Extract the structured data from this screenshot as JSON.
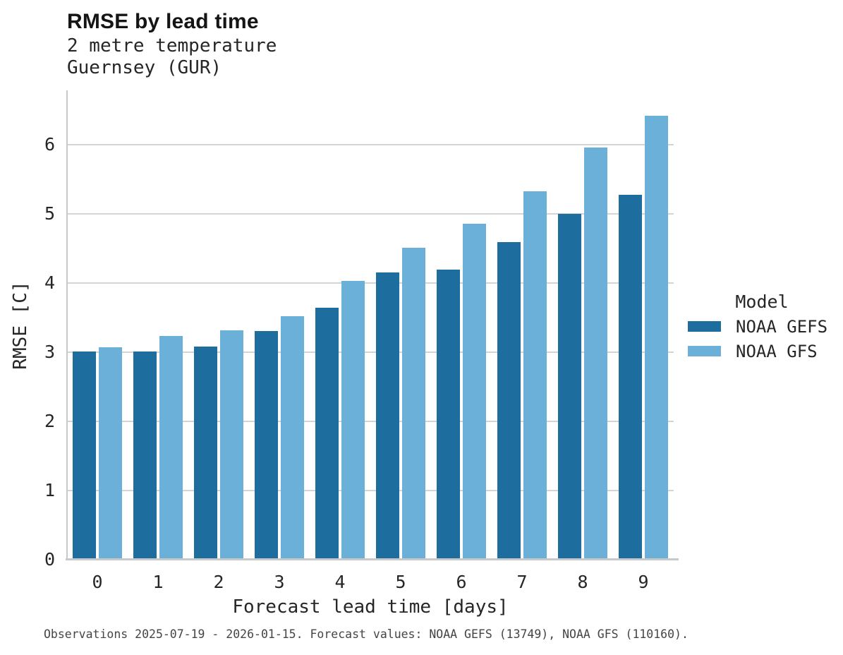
{
  "title": "RMSE by lead time",
  "subtitle_line1": "2 metre temperature",
  "subtitle_line2": "Guernsey (GUR)",
  "footer": "Observations 2025-07-19 - 2026-01-15. Forecast values: NOAA GEFS (13749), NOAA GFS (110160).",
  "legend": {
    "title": "Model",
    "items": [
      {
        "label": "NOAA GEFS",
        "color": "#1d6e9e"
      },
      {
        "label": "NOAA GFS",
        "color": "#6bb0d8"
      }
    ]
  },
  "colors": {
    "gefs_bar": "#1d6e9e",
    "gfs_bar": "#6bb0d8",
    "gridline": "#d4d4d4",
    "spine": "#c9c9c9",
    "text": "#262626",
    "footer_text": "#454545"
  },
  "chart_data": {
    "type": "bar",
    "title": "RMSE by lead time",
    "subtitle": [
      "2 metre temperature",
      "Guernsey (GUR)"
    ],
    "xlabel": "Forecast lead time [days]",
    "ylabel": "RMSE [C]",
    "categories": [
      "0",
      "1",
      "2",
      "3",
      "4",
      "5",
      "6",
      "7",
      "8",
      "9"
    ],
    "series": [
      {
        "name": "NOAA GEFS",
        "color": "#1d6e9e",
        "values": [
          3.01,
          3.01,
          3.08,
          3.3,
          3.64,
          4.15,
          4.19,
          4.59,
          5.0,
          5.27
        ]
      },
      {
        "name": "NOAA GFS",
        "color": "#6bb0d8",
        "values": [
          3.07,
          3.23,
          3.31,
          3.52,
          4.03,
          4.51,
          4.85,
          5.32,
          5.95,
          6.41
        ]
      }
    ],
    "ylim": [
      0,
      6.78
    ],
    "yticks": [
      0,
      1,
      2,
      3,
      4,
      5,
      6
    ],
    "grid": true,
    "legend_position": "right",
    "legend_title": "Model"
  }
}
